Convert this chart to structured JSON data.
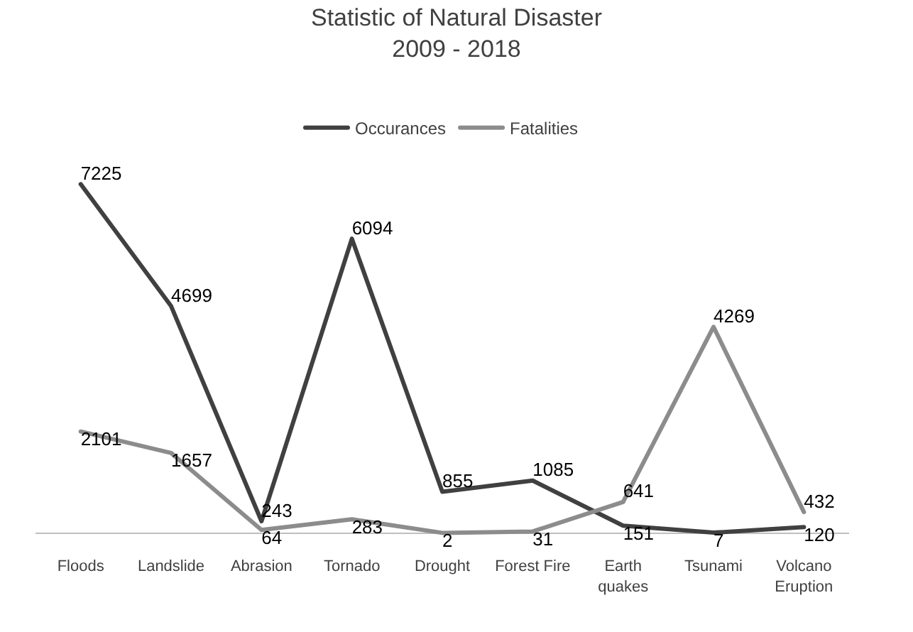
{
  "chart_data": {
    "type": "line",
    "title": "Statistic of Natural Disaster\n2009 - 2018",
    "categories": [
      "Floods",
      "Landslide",
      "Abrasion",
      "Tornado",
      "Drought",
      "Forest Fire",
      "Earth\nquakes",
      "Tsunami",
      "Volcano\nEruption"
    ],
    "series": [
      {
        "name": "Occurances",
        "color": "#404040",
        "values": [
          7225,
          4699,
          243,
          6094,
          855,
          1085,
          151,
          7,
          120
        ]
      },
      {
        "name": "Fatalities",
        "color": "#8c8c8c",
        "values": [
          2101,
          1657,
          64,
          283,
          2,
          31,
          641,
          4269,
          432
        ]
      }
    ],
    "data_labels": true,
    "legend": "top",
    "marker": "none",
    "line_style": "solid"
  }
}
